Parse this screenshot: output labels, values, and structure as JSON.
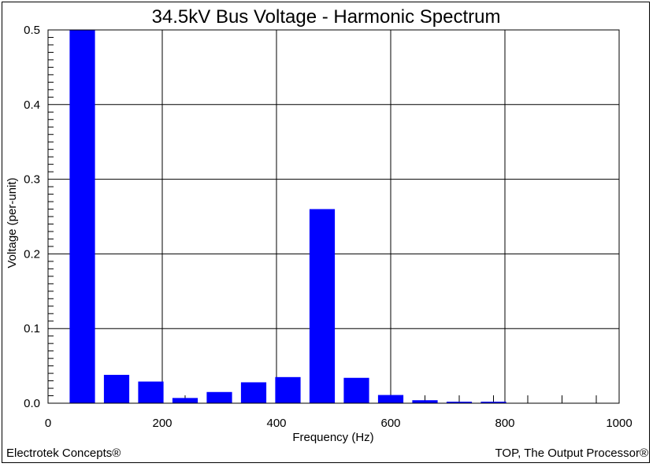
{
  "chart_data": {
    "type": "bar",
    "title": "34.5kV Bus Voltage - Harmonic Spectrum",
    "xlabel": "Frequency (Hz)",
    "ylabel": "Voltage (per-unit)",
    "xlim": [
      0,
      1000
    ],
    "ylim": [
      0,
      0.5
    ],
    "xticks": [
      "0",
      "200",
      "400",
      "600",
      "800",
      "1000"
    ],
    "yticks": [
      "0.0",
      "0.1",
      "0.2",
      "0.3",
      "0.4",
      "0.5"
    ],
    "grid": true,
    "bar_color": "#0000ff",
    "x": [
      60,
      120,
      180,
      240,
      300,
      360,
      420,
      480,
      540,
      600,
      660,
      720,
      780
    ],
    "values": [
      0.5,
      0.038,
      0.029,
      0.007,
      0.015,
      0.028,
      0.035,
      0.26,
      0.034,
      0.011,
      0.004,
      0.002,
      0.002
    ]
  },
  "footer": {
    "left": "Electrotek Concepts®",
    "right": "TOP, The Output Processor®"
  }
}
